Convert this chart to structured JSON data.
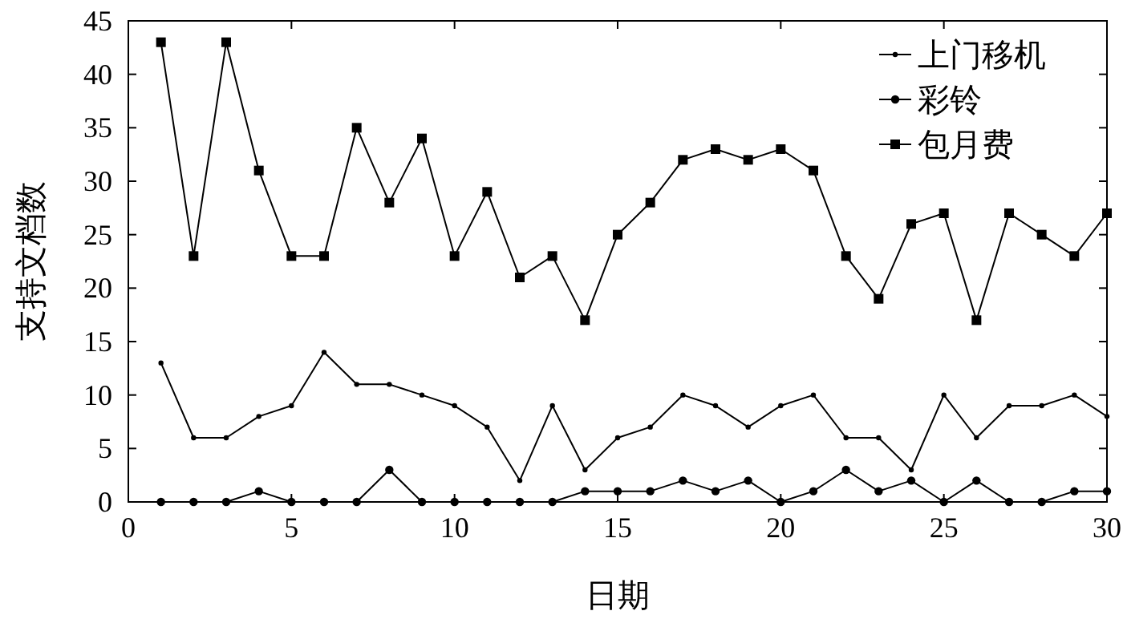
{
  "chart_data": {
    "type": "line",
    "xlabel": "日期",
    "ylabel": "支持文档数",
    "xlim": [
      0,
      30
    ],
    "xticks": [
      0,
      5,
      10,
      15,
      20,
      25,
      30
    ],
    "ylim": [
      0,
      45
    ],
    "yticks": [
      0,
      5,
      10,
      15,
      20,
      25,
      30,
      35,
      40,
      45
    ],
    "legend": "top right",
    "line_style": "solid",
    "x": [
      1,
      2,
      3,
      4,
      5,
      6,
      7,
      8,
      9,
      10,
      11,
      12,
      13,
      14,
      15,
      16,
      17,
      18,
      19,
      20,
      21,
      22,
      23,
      24,
      25,
      26,
      27,
      28,
      29,
      30
    ],
    "series": [
      {
        "name": "上门移机",
        "color": "#000000",
        "marker": "circle",
        "values": [
          13,
          6,
          6,
          8,
          9,
          14,
          11,
          11,
          10,
          9,
          7,
          2,
          9,
          3,
          6,
          7,
          10,
          9,
          7,
          9,
          10,
          6,
          6,
          3,
          10,
          6,
          9,
          9,
          10,
          8
        ]
      },
      {
        "name": "彩铃",
        "color": "#000000",
        "marker": "circle",
        "values": [
          0,
          0,
          0,
          1,
          0,
          0,
          0,
          3,
          0,
          0,
          0,
          0,
          0,
          1,
          1,
          1,
          2,
          1,
          2,
          0,
          1,
          3,
          1,
          2,
          0,
          2,
          0,
          0,
          1,
          1
        ]
      },
      {
        "name": "包月费",
        "color": "#000000",
        "marker": "square",
        "values": [
          43,
          23,
          43,
          31,
          23,
          23,
          35,
          28,
          34,
          23,
          29,
          21,
          23,
          17,
          25,
          28,
          32,
          33,
          32,
          33,
          31,
          23,
          19,
          26,
          27,
          17,
          27,
          25,
          23,
          27
        ]
      }
    ]
  }
}
